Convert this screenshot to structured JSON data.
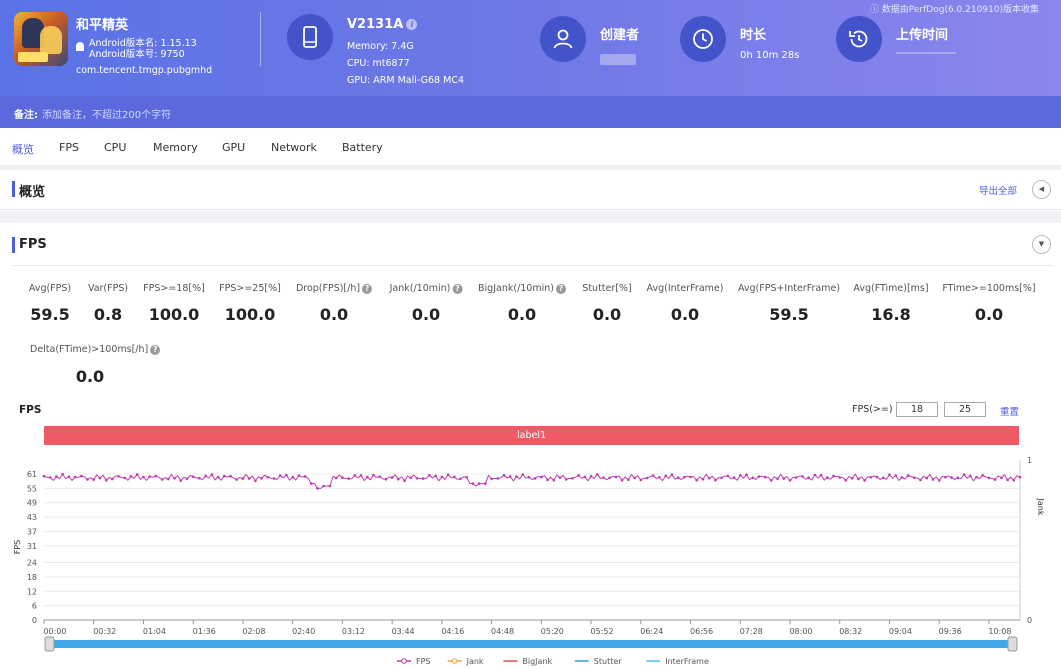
{
  "header": {
    "app": {
      "name": "和平精英",
      "version_name": "Android版本名: 1.15.13",
      "version_code": "Android版本号: 9750",
      "package": "com.tencent.tmgp.pubgmhd"
    },
    "device": {
      "name": "V2131A",
      "memory": "Memory: 7.4G",
      "cpu": "CPU: mt6877",
      "gpu": "GPU: ARM Mali-G68 MC4"
    },
    "creator": {
      "title": "创建者"
    },
    "duration": {
      "title": "时长",
      "value": "0h 10m 28s"
    },
    "upload": {
      "title": "上传时间"
    },
    "data_source": "数据由PerfDog(6.0.210910)版本收集"
  },
  "note": {
    "label": "备注:",
    "placeholder": "添加备注，不超过200个字符"
  },
  "tabs": [
    {
      "label": "概览",
      "active": true
    },
    {
      "label": "FPS"
    },
    {
      "label": "CPU"
    },
    {
      "label": "Memory"
    },
    {
      "label": "GPU"
    },
    {
      "label": "Network"
    },
    {
      "label": "Battery"
    }
  ],
  "overview": {
    "title": "概览",
    "export_label": "导出全部"
  },
  "fps_section": {
    "title": "FPS",
    "metrics": [
      {
        "label": "Avg(FPS)",
        "value": "59.5"
      },
      {
        "label": "Var(FPS)",
        "value": "0.8"
      },
      {
        "label": "FPS>=18[%]",
        "value": "100.0"
      },
      {
        "label": "FPS>=25[%]",
        "value": "100.0"
      },
      {
        "label": "Drop(FPS)[/h]",
        "value": "0.0",
        "help": true
      },
      {
        "label": "Jank(/10min)",
        "value": "0.0",
        "help": true
      },
      {
        "label": "BigJank(/10min)",
        "value": "0.0",
        "help": true
      },
      {
        "label": "Stutter[%]",
        "value": "0.0"
      },
      {
        "label": "Avg(InterFrame)",
        "value": "0.0"
      },
      {
        "label": "Avg(FPS+InterFrame)",
        "value": "59.5"
      },
      {
        "label": "Avg(FTime)[ms]",
        "value": "16.8"
      },
      {
        "label": "FTime>=100ms[%]",
        "value": "0.0"
      },
      {
        "label": "Delta(FTime)>100ms[/h]",
        "value": "0.0",
        "help": true
      }
    ],
    "chart_title": "FPS",
    "threshold_label": "FPS(>=)",
    "threshold_values": [
      "18",
      "25"
    ],
    "reset_label": "重置",
    "label_band": "label1"
  },
  "chart_data": {
    "type": "line",
    "title": "FPS",
    "xlabel": "",
    "ylabel": "FPS",
    "y2label": "Jank",
    "y_ticks": [
      0,
      6,
      12,
      18,
      24,
      31,
      37,
      43,
      49,
      55,
      61
    ],
    "ylim": [
      0,
      61
    ],
    "y2_ticks": [
      0,
      1
    ],
    "y2lim": [
      0,
      1
    ],
    "x_ticks": [
      "00:00",
      "00:32",
      "01:04",
      "01:36",
      "02:08",
      "02:40",
      "03:12",
      "03:44",
      "04:16",
      "04:48",
      "05:20",
      "05:52",
      "06:24",
      "06:56",
      "07:28",
      "08:00",
      "08:32",
      "09:04",
      "09:36",
      "10:08"
    ],
    "x_range_seconds": [
      0,
      628
    ],
    "series": [
      {
        "name": "FPS",
        "color": "#c13aaf",
        "baseline": 59.5,
        "dips": [
          [
            174,
            57
          ],
          [
            178,
            55
          ],
          [
            182,
            56
          ],
          [
            276,
            57
          ],
          [
            280,
            56
          ],
          [
            282,
            57
          ]
        ]
      },
      {
        "name": "Jank",
        "color": "#f0a54b",
        "values_constant": 0
      },
      {
        "name": "BigJank",
        "color": "#e04a4a",
        "values_constant": 0
      },
      {
        "name": "Stutter",
        "color": "#2f9bd6",
        "values_constant": 0
      },
      {
        "name": "InterFrame",
        "color": "#4fc1e9",
        "values_constant": 0
      }
    ],
    "grid": true,
    "legend": "bottom"
  },
  "colors": {
    "accent": "#4e5ee0",
    "header_start": "#5a73e6",
    "header_end": "#8a86ee",
    "label_band": "#ee5a66",
    "slider": "#3fa9e8"
  }
}
